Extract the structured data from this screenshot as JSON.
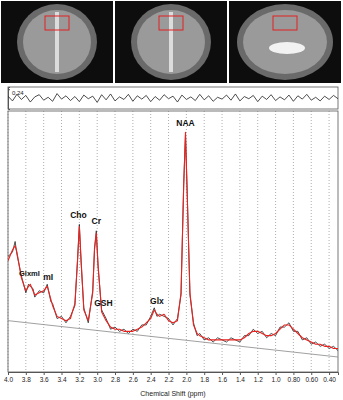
{
  "chart_data": [
    {
      "type": "line",
      "xlim": [
        4.0,
        0.3
      ],
      "ylim": [
        -0.3,
        0.3
      ],
      "yticks": [
        0.24
      ],
      "tick_labels": "y",
      "grid": false,
      "x": [
        4.0,
        3.95,
        3.9,
        3.85,
        3.8,
        3.75,
        3.7,
        3.65,
        3.6,
        3.55,
        3.5,
        3.45,
        3.4,
        3.35,
        3.3,
        3.25,
        3.2,
        3.15,
        3.1,
        3.05,
        3.0,
        2.95,
        2.9,
        2.85,
        2.8,
        2.75,
        2.7,
        2.65,
        2.6,
        2.55,
        2.5,
        2.45,
        2.4,
        2.35,
        2.3,
        2.25,
        2.2,
        2.15,
        2.1,
        2.05,
        2.0,
        1.95,
        1.9,
        1.85,
        1.8,
        1.75,
        1.7,
        1.65,
        1.6,
        1.55,
        1.5,
        1.45,
        1.4,
        1.35,
        1.3,
        1.25,
        1.2,
        1.15,
        1.1,
        1.05,
        1.0,
        0.95,
        0.9,
        0.85,
        0.8,
        0.75,
        0.7,
        0.65,
        0.6,
        0.55,
        0.5,
        0.45,
        0.4,
        0.35,
        0.3
      ],
      "series": [
        {
          "color": "#222222",
          "values": [
            0.05,
            -0.08,
            0.1,
            -0.04,
            0.07,
            -0.11,
            0.03,
            0.09,
            -0.06,
            0.02,
            -0.09,
            0.12,
            -0.03,
            0.06,
            -0.07,
            0.04,
            -0.1,
            0.08,
            -0.02,
            0.05,
            -0.12,
            0.09,
            -0.05,
            0.11,
            -0.08,
            0.03,
            -0.04,
            0.1,
            -0.09,
            0.06,
            -0.03,
            0.07,
            -0.1,
            0.04,
            -0.06,
            0.09,
            -0.02,
            0.05,
            -0.11,
            0.08,
            -0.04,
            0.03,
            -0.07,
            0.1,
            -0.05,
            0.06,
            -0.09,
            0.02,
            -0.03,
            0.08,
            -0.06,
            0.11,
            -0.08,
            0.04,
            -0.02,
            0.07,
            -0.1,
            0.05,
            -0.04,
            0.09,
            -0.07,
            0.03,
            -0.05,
            0.08,
            -0.09,
            0.06,
            -0.03,
            0.1,
            -0.06,
            0.02,
            -0.08,
            0.05,
            -0.04,
            0.07,
            -0.02
          ]
        }
      ]
    },
    {
      "type": "line",
      "x_label": "Chemical Shift (ppm)",
      "xlim": [
        4.0,
        0.3
      ],
      "ylim": [
        -0.12,
        1.1
      ],
      "grid": true,
      "tick_labels": "x",
      "xticks": [
        {
          "value": 4.0,
          "label": "4.0"
        },
        3.8,
        3.6,
        3.4,
        3.2,
        {
          "value": 3.0,
          "label": "3.0"
        },
        2.8,
        2.6,
        2.4,
        2.2,
        {
          "value": 2.0,
          "label": "2.0"
        },
        1.8,
        1.6,
        1.4,
        1.2,
        {
          "value": 1.0,
          "label": "1.0"
        },
        {
          "value": 0.8,
          "label": "0.80"
        },
        {
          "value": 0.6,
          "label": "0.60"
        },
        {
          "value": 0.4,
          "label": "0.40"
        }
      ],
      "x": [
        4.0,
        3.95,
        3.92,
        3.9,
        3.85,
        3.8,
        3.77,
        3.75,
        3.72,
        3.7,
        3.65,
        3.6,
        3.56,
        3.52,
        3.5,
        3.45,
        3.4,
        3.35,
        3.3,
        3.25,
        3.22,
        3.2,
        3.18,
        3.15,
        3.1,
        3.05,
        3.03,
        3.01,
        2.99,
        2.95,
        2.9,
        2.85,
        2.8,
        2.75,
        2.7,
        2.65,
        2.6,
        2.55,
        2.5,
        2.45,
        2.4,
        2.36,
        2.33,
        2.3,
        2.25,
        2.2,
        2.15,
        2.1,
        2.06,
        2.03,
        2.01,
        1.99,
        1.96,
        1.92,
        1.88,
        1.85,
        1.8,
        1.75,
        1.7,
        1.65,
        1.6,
        1.55,
        1.5,
        1.45,
        1.4,
        1.35,
        1.3,
        1.25,
        1.2,
        1.15,
        1.1,
        1.05,
        1.0,
        0.95,
        0.9,
        0.85,
        0.8,
        0.75,
        0.7,
        0.65,
        0.6,
        0.55,
        0.5,
        0.45,
        0.4,
        0.35,
        0.3
      ],
      "series": [
        {
          "color": "#222222",
          "values": [
            0.42,
            0.44,
            0.49,
            0.43,
            0.33,
            0.25,
            0.29,
            0.28,
            0.27,
            0.23,
            0.26,
            0.25,
            0.29,
            0.21,
            0.2,
            0.13,
            0.14,
            0.11,
            0.14,
            0.19,
            0.41,
            0.57,
            0.39,
            0.18,
            0.11,
            0.26,
            0.45,
            0.54,
            0.37,
            0.17,
            0.13,
            0.08,
            0.09,
            0.07,
            0.08,
            0.06,
            0.08,
            0.07,
            0.1,
            0.1,
            0.14,
            0.18,
            0.14,
            0.15,
            0.14,
            0.13,
            0.1,
            0.13,
            0.24,
            0.76,
            0.99,
            0.71,
            0.24,
            0.11,
            0.05,
            0.06,
            0.03,
            0.04,
            0.02,
            0.04,
            0.03,
            0.02,
            0.04,
            0.03,
            0.02,
            0.05,
            0.05,
            0.08,
            0.06,
            0.07,
            0.04,
            0.06,
            0.05,
            0.09,
            0.09,
            0.11,
            0.07,
            0.07,
            0.03,
            0.04,
            0.01,
            0.02,
            0.0,
            0.01,
            -0.01,
            0.0,
            -0.02
          ]
        },
        {
          "color": "#e8231f",
          "values": [
            0.4,
            0.45,
            0.47,
            0.44,
            0.32,
            0.26,
            0.28,
            0.29,
            0.26,
            0.24,
            0.25,
            0.26,
            0.28,
            0.22,
            0.19,
            0.14,
            0.13,
            0.12,
            0.13,
            0.2,
            0.4,
            0.56,
            0.4,
            0.17,
            0.12,
            0.25,
            0.46,
            0.53,
            0.38,
            0.16,
            0.12,
            0.09,
            0.08,
            0.08,
            0.07,
            0.07,
            0.07,
            0.08,
            0.09,
            0.11,
            0.13,
            0.17,
            0.15,
            0.14,
            0.15,
            0.12,
            0.11,
            0.12,
            0.25,
            0.75,
            1.0,
            0.7,
            0.25,
            0.1,
            0.06,
            0.05,
            0.04,
            0.03,
            0.03,
            0.03,
            0.03,
            0.03,
            0.03,
            0.03,
            0.03,
            0.04,
            0.06,
            0.07,
            0.07,
            0.06,
            0.05,
            0.05,
            0.06,
            0.08,
            0.1,
            0.1,
            0.08,
            0.06,
            0.04,
            0.03,
            0.02,
            0.01,
            0.01,
            0.0,
            0.0,
            -0.01,
            -0.01
          ]
        },
        {
          "color": "#888888",
          "x": [
            4.0,
            0.3
          ],
          "values": [
            0.12,
            -0.05
          ]
        }
      ],
      "annotations": [
        {
          "text": "NAA",
          "x": 2.01,
          "y": 1.03
        },
        {
          "text": "Cho",
          "x": 3.21,
          "y": 0.6
        },
        {
          "text": "Cr",
          "x": 3.01,
          "y": 0.57
        },
        {
          "text": "GSH",
          "x": 2.93,
          "y": 0.19
        },
        {
          "text": "Glx",
          "x": 2.33,
          "y": 0.2
        },
        {
          "text": "GlxmI",
          "x": 3.76,
          "y": 0.33
        },
        {
          "text": "mI",
          "x": 3.55,
          "y": 0.31
        }
      ]
    }
  ]
}
